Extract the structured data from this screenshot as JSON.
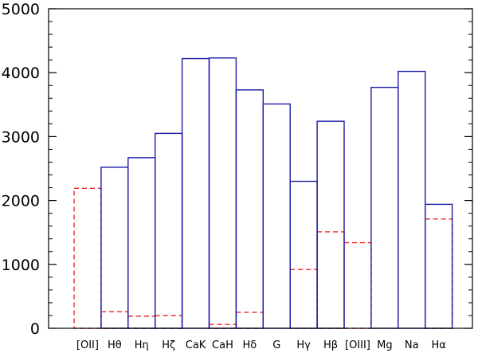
{
  "chart_data": {
    "type": "bar",
    "categories": [
      "[OII]",
      "Hθ",
      "Hη",
      "Hζ",
      "CaK",
      "CaH",
      "Hδ",
      "G",
      "Hγ",
      "Hβ",
      "[OIII]",
      "Mg",
      "Na",
      "Hα"
    ],
    "series": [
      {
        "values": [
          0,
          2520,
          2670,
          3050,
          4220,
          4230,
          3730,
          3510,
          2300,
          3240,
          0,
          3770,
          4020,
          1940
        ]
      },
      {
        "values": [
          2190,
          260,
          190,
          200,
          0,
          60,
          250,
          0,
          920,
          1510,
          1340,
          0,
          0,
          1710
        ]
      }
    ],
    "yticks": [
      0,
      1000,
      2000,
      3000,
      4000,
      5000
    ],
    "ylim": [
      0,
      5000
    ],
    "grid": false,
    "colors": {
      "series1": "#1a1aaa",
      "series2": "#ee2222"
    }
  }
}
